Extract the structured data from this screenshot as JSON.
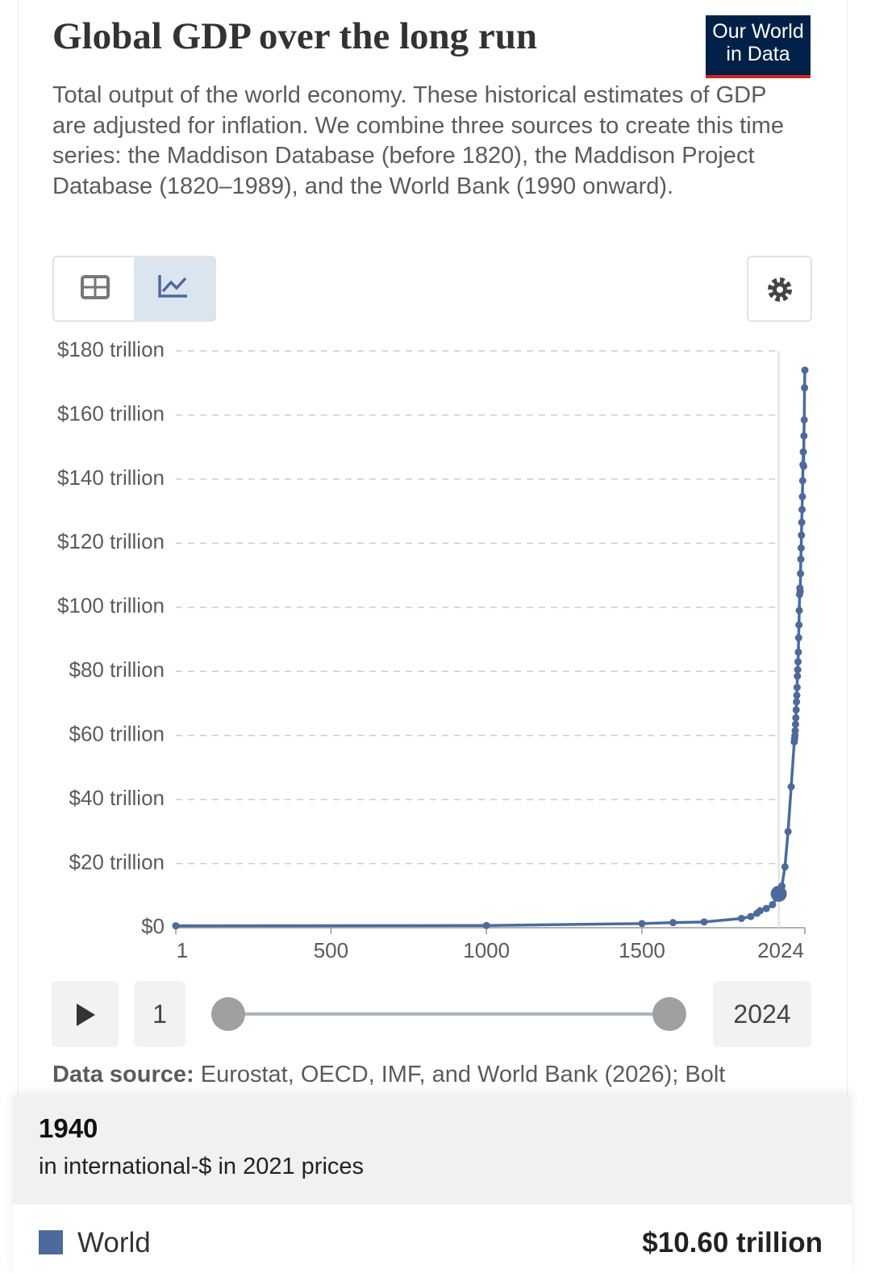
{
  "header": {
    "title": "Global GDP over the long run",
    "subtitle": "Total output of the world economy. These historical estimates of GDP are adjusted for inflation. We combine three sources to create this time series: the Maddison Database (before 1820), the Maddison Project Database (1820–1989), and the World Bank (1990 onward).",
    "logo": [
      "Our World",
      "in Data"
    ]
  },
  "chart_data": {
    "type": "line",
    "x": [
      1,
      1000,
      1500,
      1600,
      1700,
      1820,
      1850,
      1870,
      1880,
      1900,
      1920,
      1940,
      1950,
      1960,
      1970,
      1980,
      1990,
      1991,
      1992,
      1993,
      1994,
      1995,
      1996,
      1997,
      1998,
      1999,
      2000,
      2001,
      2002,
      2003,
      2004,
      2005,
      2006,
      2007,
      2008,
      2009,
      2010,
      2011,
      2012,
      2013,
      2014,
      2015,
      2016,
      2017,
      2018,
      2019,
      2020,
      2021,
      2022,
      2023,
      2024
    ],
    "series": [
      {
        "name": "World",
        "color": "#4c6a9c",
        "values": [
          0.6,
          0.7,
          1.3,
          1.6,
          1.8,
          2.9,
          3.5,
          4.5,
          5.3,
          6.0,
          7.2,
          10.6,
          13.0,
          19.0,
          30.0,
          44.0,
          58,
          59,
          60,
          61.5,
          63.5,
          65.5,
          68,
          70.5,
          72.5,
          75,
          78.5,
          80.5,
          83,
          86,
          90.5,
          94.5,
          99,
          104,
          106,
          105,
          110.5,
          115,
          118.5,
          122.5,
          126.5,
          130.5,
          134.5,
          139.5,
          144.5,
          148.5,
          144,
          153.5,
          158.5,
          168.5,
          174
        ]
      }
    ],
    "xlim": [
      1,
      2024
    ],
    "xticks": [
      1,
      500,
      1000,
      1500,
      2024
    ],
    "ylim": [
      0,
      180
    ],
    "yticks": [
      {
        "value": 0,
        "label": "$0"
      },
      {
        "value": 20,
        "label": "$20 trillion"
      },
      {
        "value": 40,
        "label": "$40 trillion"
      },
      {
        "value": 60,
        "label": "$60 trillion"
      },
      {
        "value": 80,
        "label": "$80 trillion"
      },
      {
        "value": 100,
        "label": "$100 trillion"
      },
      {
        "value": 120,
        "label": "$120 trillion"
      },
      {
        "value": 140,
        "label": "$140 trillion"
      },
      {
        "value": 160,
        "label": "$160 trillion"
      },
      {
        "value": 180,
        "label": "$180 trillion"
      }
    ],
    "grid": true,
    "highlight_x": 1940,
    "tooltip": {
      "unit": "in international-$ in 2021 prices",
      "value_label": "$10.60 trillion"
    }
  },
  "source": {
    "label": "Data source:",
    "text": "Eurostat, OECD, IMF, and World Bank (2026); Bolt"
  }
}
